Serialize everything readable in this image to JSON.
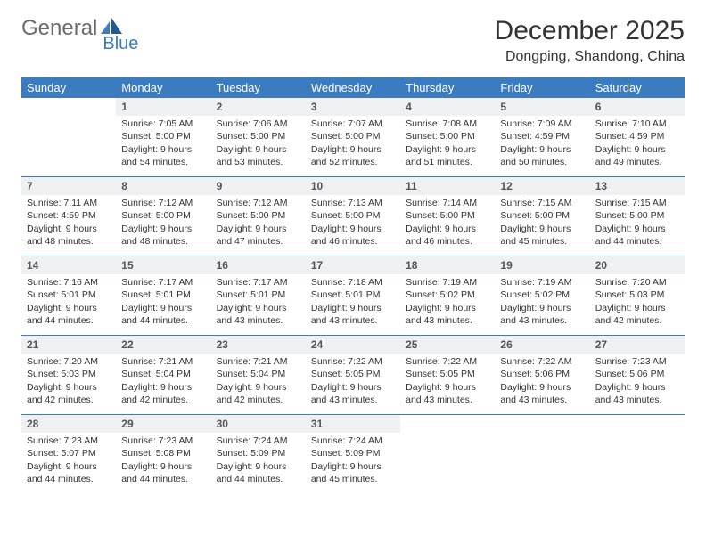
{
  "logo": {
    "part1": "General",
    "part2": "Blue"
  },
  "title": "December 2025",
  "location": "Dongping, Shandong, China",
  "colors": {
    "header_bg": "#3b7bbf",
    "header_text": "#ffffff",
    "daynum_bg": "#eef0f2",
    "rule": "#3b7bbf",
    "body_text": "#333333",
    "logo_gray": "#6b6b6b",
    "logo_blue": "#3b7bbf",
    "page_bg": "#ffffff"
  },
  "typography": {
    "title_fontsize": 30,
    "location_fontsize": 16,
    "header_fontsize": 13,
    "daynum_fontsize": 12,
    "cell_fontsize": 10.5,
    "logo_fontsize": 24
  },
  "weekdays": [
    "Sunday",
    "Monday",
    "Tuesday",
    "Wednesday",
    "Thursday",
    "Friday",
    "Saturday"
  ],
  "weeks": [
    [
      {
        "day": "",
        "lines": []
      },
      {
        "day": "1",
        "lines": [
          "Sunrise: 7:05 AM",
          "Sunset: 5:00 PM",
          "Daylight: 9 hours",
          "and 54 minutes."
        ]
      },
      {
        "day": "2",
        "lines": [
          "Sunrise: 7:06 AM",
          "Sunset: 5:00 PM",
          "Daylight: 9 hours",
          "and 53 minutes."
        ]
      },
      {
        "day": "3",
        "lines": [
          "Sunrise: 7:07 AM",
          "Sunset: 5:00 PM",
          "Daylight: 9 hours",
          "and 52 minutes."
        ]
      },
      {
        "day": "4",
        "lines": [
          "Sunrise: 7:08 AM",
          "Sunset: 5:00 PM",
          "Daylight: 9 hours",
          "and 51 minutes."
        ]
      },
      {
        "day": "5",
        "lines": [
          "Sunrise: 7:09 AM",
          "Sunset: 4:59 PM",
          "Daylight: 9 hours",
          "and 50 minutes."
        ]
      },
      {
        "day": "6",
        "lines": [
          "Sunrise: 7:10 AM",
          "Sunset: 4:59 PM",
          "Daylight: 9 hours",
          "and 49 minutes."
        ]
      }
    ],
    [
      {
        "day": "7",
        "lines": [
          "Sunrise: 7:11 AM",
          "Sunset: 4:59 PM",
          "Daylight: 9 hours",
          "and 48 minutes."
        ]
      },
      {
        "day": "8",
        "lines": [
          "Sunrise: 7:12 AM",
          "Sunset: 5:00 PM",
          "Daylight: 9 hours",
          "and 48 minutes."
        ]
      },
      {
        "day": "9",
        "lines": [
          "Sunrise: 7:12 AM",
          "Sunset: 5:00 PM",
          "Daylight: 9 hours",
          "and 47 minutes."
        ]
      },
      {
        "day": "10",
        "lines": [
          "Sunrise: 7:13 AM",
          "Sunset: 5:00 PM",
          "Daylight: 9 hours",
          "and 46 minutes."
        ]
      },
      {
        "day": "11",
        "lines": [
          "Sunrise: 7:14 AM",
          "Sunset: 5:00 PM",
          "Daylight: 9 hours",
          "and 46 minutes."
        ]
      },
      {
        "day": "12",
        "lines": [
          "Sunrise: 7:15 AM",
          "Sunset: 5:00 PM",
          "Daylight: 9 hours",
          "and 45 minutes."
        ]
      },
      {
        "day": "13",
        "lines": [
          "Sunrise: 7:15 AM",
          "Sunset: 5:00 PM",
          "Daylight: 9 hours",
          "and 44 minutes."
        ]
      }
    ],
    [
      {
        "day": "14",
        "lines": [
          "Sunrise: 7:16 AM",
          "Sunset: 5:01 PM",
          "Daylight: 9 hours",
          "and 44 minutes."
        ]
      },
      {
        "day": "15",
        "lines": [
          "Sunrise: 7:17 AM",
          "Sunset: 5:01 PM",
          "Daylight: 9 hours",
          "and 44 minutes."
        ]
      },
      {
        "day": "16",
        "lines": [
          "Sunrise: 7:17 AM",
          "Sunset: 5:01 PM",
          "Daylight: 9 hours",
          "and 43 minutes."
        ]
      },
      {
        "day": "17",
        "lines": [
          "Sunrise: 7:18 AM",
          "Sunset: 5:01 PM",
          "Daylight: 9 hours",
          "and 43 minutes."
        ]
      },
      {
        "day": "18",
        "lines": [
          "Sunrise: 7:19 AM",
          "Sunset: 5:02 PM",
          "Daylight: 9 hours",
          "and 43 minutes."
        ]
      },
      {
        "day": "19",
        "lines": [
          "Sunrise: 7:19 AM",
          "Sunset: 5:02 PM",
          "Daylight: 9 hours",
          "and 43 minutes."
        ]
      },
      {
        "day": "20",
        "lines": [
          "Sunrise: 7:20 AM",
          "Sunset: 5:03 PM",
          "Daylight: 9 hours",
          "and 42 minutes."
        ]
      }
    ],
    [
      {
        "day": "21",
        "lines": [
          "Sunrise: 7:20 AM",
          "Sunset: 5:03 PM",
          "Daylight: 9 hours",
          "and 42 minutes."
        ]
      },
      {
        "day": "22",
        "lines": [
          "Sunrise: 7:21 AM",
          "Sunset: 5:04 PM",
          "Daylight: 9 hours",
          "and 42 minutes."
        ]
      },
      {
        "day": "23",
        "lines": [
          "Sunrise: 7:21 AM",
          "Sunset: 5:04 PM",
          "Daylight: 9 hours",
          "and 42 minutes."
        ]
      },
      {
        "day": "24",
        "lines": [
          "Sunrise: 7:22 AM",
          "Sunset: 5:05 PM",
          "Daylight: 9 hours",
          "and 43 minutes."
        ]
      },
      {
        "day": "25",
        "lines": [
          "Sunrise: 7:22 AM",
          "Sunset: 5:05 PM",
          "Daylight: 9 hours",
          "and 43 minutes."
        ]
      },
      {
        "day": "26",
        "lines": [
          "Sunrise: 7:22 AM",
          "Sunset: 5:06 PM",
          "Daylight: 9 hours",
          "and 43 minutes."
        ]
      },
      {
        "day": "27",
        "lines": [
          "Sunrise: 7:23 AM",
          "Sunset: 5:06 PM",
          "Daylight: 9 hours",
          "and 43 minutes."
        ]
      }
    ],
    [
      {
        "day": "28",
        "lines": [
          "Sunrise: 7:23 AM",
          "Sunset: 5:07 PM",
          "Daylight: 9 hours",
          "and 44 minutes."
        ]
      },
      {
        "day": "29",
        "lines": [
          "Sunrise: 7:23 AM",
          "Sunset: 5:08 PM",
          "Daylight: 9 hours",
          "and 44 minutes."
        ]
      },
      {
        "day": "30",
        "lines": [
          "Sunrise: 7:24 AM",
          "Sunset: 5:09 PM",
          "Daylight: 9 hours",
          "and 44 minutes."
        ]
      },
      {
        "day": "31",
        "lines": [
          "Sunrise: 7:24 AM",
          "Sunset: 5:09 PM",
          "Daylight: 9 hours",
          "and 45 minutes."
        ]
      },
      {
        "day": "",
        "lines": []
      },
      {
        "day": "",
        "lines": []
      },
      {
        "day": "",
        "lines": []
      }
    ]
  ]
}
